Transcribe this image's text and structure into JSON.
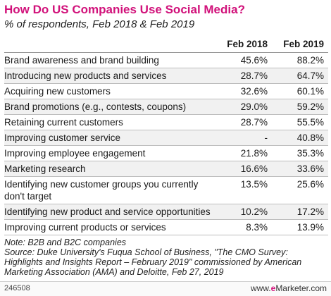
{
  "chart_data": {
    "type": "table",
    "title": "How Do US Companies Use Social Media?",
    "subtitle": "% of respondents, Feb 2018 & Feb 2019",
    "columns": [
      "",
      "Feb 2018",
      "Feb 2019"
    ],
    "rows": [
      {
        "label": "Brand awareness and brand building",
        "feb2018": "45.6%",
        "feb2019": "88.2%"
      },
      {
        "label": "Introducing new products and services",
        "feb2018": "28.7%",
        "feb2019": "64.7%"
      },
      {
        "label": "Acquiring new customers",
        "feb2018": "32.6%",
        "feb2019": "60.1%"
      },
      {
        "label": "Brand promotions (e.g., contests, coupons)",
        "feb2018": "29.0%",
        "feb2019": "59.2%"
      },
      {
        "label": "Retaining current customers",
        "feb2018": "28.7%",
        "feb2019": "55.5%"
      },
      {
        "label": "Improving customer service",
        "feb2018": "-",
        "feb2019": "40.8%"
      },
      {
        "label": "Improving employee engagement",
        "feb2018": "21.8%",
        "feb2019": "35.3%"
      },
      {
        "label": "Marketing research",
        "feb2018": "16.6%",
        "feb2019": "33.6%"
      },
      {
        "label": "Identifying new customer groups you currently don't target",
        "feb2018": "13.5%",
        "feb2019": "25.6%"
      },
      {
        "label": "Identifying new product and service opportunities",
        "feb2018": "10.2%",
        "feb2019": "17.2%"
      },
      {
        "label": "Improving current products or services",
        "feb2018": "8.3%",
        "feb2019": "13.9%"
      }
    ]
  },
  "notes": {
    "note": "Note: B2B and B2C companies",
    "source": "Source: Duke University's Fuqua School of Business, \"The CMO Survey: Highlights and Insights Report – February 2019\" commissioned by American Marketing Association (AMA) and Deloitte, Feb 27, 2019"
  },
  "footer": {
    "id": "246508",
    "brand_prefix": "www.",
    "brand_e": "e",
    "brand_suffix": "Marketer.com"
  },
  "colors": {
    "title": "#d1117a",
    "row_alt": "#f1f1f1"
  }
}
